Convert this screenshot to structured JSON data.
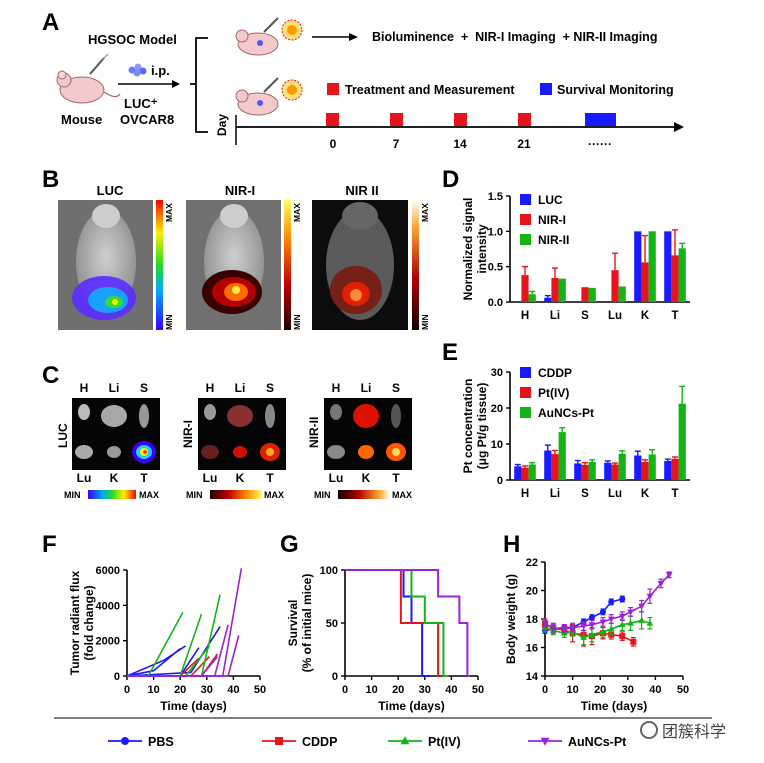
{
  "panel_letters": [
    "A",
    "B",
    "C",
    "D",
    "E",
    "F",
    "G",
    "H"
  ],
  "schematic": {
    "model_title": "HGSOC Model",
    "mouse_label": "Mouse",
    "ip_label": "i.p.",
    "cell_line": [
      "LUC⁺",
      "OVCAR8"
    ],
    "imaging_label": "Bioluminence  +  NIR-I Imaging  + NIR-II Imaging",
    "legend_treatment": "Treatment and Measurement",
    "legend_survival": "Survival Monitoring",
    "timeline_axis": "Day",
    "timeline_ticks": [
      "0",
      "7",
      "14",
      "21",
      "······"
    ],
    "colors": {
      "treatment": "#e8141c",
      "survival": "#1a1aff"
    }
  },
  "imaging_b": {
    "titles": [
      "LUC",
      "NIR-I",
      "NIR II"
    ],
    "scale_max": "MAX",
    "scale_min": "MIN"
  },
  "imaging_c": {
    "row_labels": [
      "LUC",
      "NIR-I",
      "NIR-II"
    ],
    "organs_top": [
      "H",
      "Li",
      "S"
    ],
    "organs_bottom": [
      "Lu",
      "K",
      "T"
    ],
    "scale_min": "MIN",
    "scale_max": "MAX"
  },
  "chart_data": [
    {
      "panel": "D",
      "type": "bar",
      "ylabel": "Normalized signal intensity",
      "ylim": [
        0,
        1.5
      ],
      "yticks": [
        "0.0",
        "0.5",
        "1.0",
        "1.5"
      ],
      "categories": [
        "H",
        "Li",
        "S",
        "Lu",
        "K",
        "T"
      ],
      "legend": "top-left",
      "series": [
        {
          "name": "LUC",
          "color": "#1a1aff",
          "values": [
            0.0,
            0.06,
            0.0,
            0.0,
            1.0,
            1.0
          ],
          "err": [
            0,
            0.03,
            0,
            0,
            0,
            0
          ]
        },
        {
          "name": "NIR-I",
          "color": "#e8141c",
          "values": [
            0.38,
            0.34,
            0.21,
            0.45,
            0.56,
            0.66
          ],
          "err": [
            0.12,
            0.14,
            0,
            0.24,
            0.38,
            0.36
          ]
        },
        {
          "name": "NIR-II",
          "color": "#14b414",
          "values": [
            0.11,
            0.33,
            0.2,
            0.22,
            1.0,
            0.76
          ],
          "err": [
            0.04,
            0,
            0,
            0,
            0,
            0.07
          ]
        }
      ]
    },
    {
      "panel": "E",
      "type": "bar",
      "ylabel": "Pt concentration (μg Pt/g tissue)",
      "ylim": [
        0,
        30
      ],
      "yticks": [
        "0",
        "10",
        "20",
        "30"
      ],
      "categories": [
        "H",
        "Li",
        "S",
        "Lu",
        "K",
        "T"
      ],
      "legend": "top-left",
      "series": [
        {
          "name": "CDDP",
          "color": "#1a1aff",
          "values": [
            3.8,
            8.2,
            4.6,
            4.8,
            6.8,
            5.3
          ],
          "err": [
            0.5,
            1.5,
            0.8,
            0.5,
            1.2,
            0.5
          ]
        },
        {
          "name": "Pt(IV)",
          "color": "#e8141c",
          "values": [
            3.4,
            7.2,
            4.2,
            4.3,
            5.0,
            5.9
          ],
          "err": [
            0.5,
            1.0,
            0.6,
            0.4,
            0.6,
            0.5
          ]
        },
        {
          "name": "AuNCs-Pt",
          "color": "#14b414",
          "values": [
            4.3,
            13.3,
            5.0,
            7.3,
            7.1,
            21.2
          ],
          "err": [
            0.5,
            1.2,
            0.6,
            0.8,
            1.3,
            4.8
          ]
        }
      ]
    },
    {
      "panel": "F",
      "type": "line",
      "xlabel": "Time (days)",
      "ylabel": "Tumor radiant flux (fold change)",
      "xlim": [
        0,
        50
      ],
      "ylim": [
        0,
        6000
      ],
      "xticks": [
        "0",
        "10",
        "20",
        "30",
        "40",
        "50"
      ],
      "yticks": [
        "0",
        "2000",
        "4000",
        "6000"
      ],
      "series": [
        {
          "group": "PBS",
          "color": "#1a1aff",
          "x": [
            0,
            10,
            20
          ],
          "y": [
            0,
            300,
            1550
          ]
        },
        {
          "group": "PBS",
          "color": "#1a1aff",
          "x": [
            0,
            14,
            22
          ],
          "y": [
            0,
            900,
            1700
          ]
        },
        {
          "group": "PBS",
          "color": "#1a1aff",
          "x": [
            0,
            20,
            27
          ],
          "y": [
            0,
            0,
            1600
          ]
        },
        {
          "group": "PBS",
          "color": "#1a1aff",
          "x": [
            0,
            24,
            35
          ],
          "y": [
            0,
            200,
            2800
          ]
        },
        {
          "group": "CDDP",
          "color": "#e8141c",
          "x": [
            0,
            20,
            27
          ],
          "y": [
            0,
            0,
            1000
          ]
        },
        {
          "group": "CDDP",
          "color": "#e8141c",
          "x": [
            0,
            24,
            31
          ],
          "y": [
            0,
            0,
            1100
          ]
        },
        {
          "group": "CDDP",
          "color": "#e8141c",
          "x": [
            0,
            28,
            34
          ],
          "y": [
            0,
            0,
            1250
          ]
        },
        {
          "group": "Pt(IV)",
          "color": "#14b414",
          "x": [
            0,
            8,
            21
          ],
          "y": [
            0,
            0,
            3600
          ]
        },
        {
          "group": "Pt(IV)",
          "color": "#14b414",
          "x": [
            0,
            20,
            28
          ],
          "y": [
            0,
            0,
            3500
          ]
        },
        {
          "group": "Pt(IV)",
          "color": "#14b414",
          "x": [
            0,
            28,
            35
          ],
          "y": [
            0,
            0,
            4600
          ]
        },
        {
          "group": "Pt(IV)",
          "color": "#14b414",
          "x": [
            0,
            22,
            31
          ],
          "y": [
            0,
            0,
            1700
          ]
        },
        {
          "group": "AuNCs-Pt",
          "color": "#9b22d6",
          "x": [
            0,
            28,
            34
          ],
          "y": [
            0,
            0,
            1100
          ]
        },
        {
          "group": "AuNCs-Pt",
          "color": "#9b22d6",
          "x": [
            0,
            33,
            38
          ],
          "y": [
            0,
            0,
            2900
          ]
        },
        {
          "group": "AuNCs-Pt",
          "color": "#9b22d6",
          "x": [
            0,
            36,
            43
          ],
          "y": [
            0,
            0,
            6100
          ]
        },
        {
          "group": "AuNCs-Pt",
          "color": "#9b22d6",
          "x": [
            0,
            38,
            42
          ],
          "y": [
            0,
            0,
            2300
          ]
        }
      ]
    },
    {
      "panel": "G",
      "type": "line",
      "xlabel": "Time (days)",
      "ylabel": "Survival (% of initial mice)",
      "xlim": [
        0,
        50
      ],
      "ylim": [
        0,
        100
      ],
      "xticks": [
        "0",
        "10",
        "20",
        "30",
        "40",
        "50"
      ],
      "yticks": [
        "0",
        "50",
        "100"
      ],
      "series": [
        {
          "name": "PBS",
          "color": "#1a1aff",
          "x": [
            0,
            22,
            22,
            25,
            25,
            29,
            29,
            32
          ],
          "y": [
            100,
            100,
            75,
            75,
            50,
            50,
            0,
            0
          ]
        },
        {
          "name": "CDDP",
          "color": "#e8141c",
          "x": [
            0,
            21,
            21,
            28,
            28,
            35,
            35,
            36
          ],
          "y": [
            100,
            100,
            50,
            50,
            50,
            50,
            0,
            0
          ]
        },
        {
          "name": "Pt(IV)",
          "color": "#14b414",
          "x": [
            0,
            25,
            25,
            30,
            30,
            37,
            37,
            39
          ],
          "y": [
            100,
            100,
            75,
            75,
            50,
            50,
            0,
            0
          ]
        },
        {
          "name": "AuNCs-Pt",
          "color": "#9b22d6",
          "x": [
            0,
            35,
            35,
            43,
            43,
            46,
            46,
            47
          ],
          "y": [
            100,
            100,
            75,
            75,
            50,
            50,
            0,
            0
          ]
        }
      ]
    },
    {
      "panel": "H",
      "type": "line",
      "xlabel": "Time (days)",
      "ylabel": "Body weight (g)",
      "xlim": [
        0,
        50
      ],
      "ylim": [
        14,
        22
      ],
      "xticks": [
        "0",
        "10",
        "20",
        "30",
        "40",
        "50"
      ],
      "yticks": [
        "14",
        "16",
        "18",
        "20",
        "22"
      ],
      "series": [
        {
          "name": "PBS",
          "color": "#1a1aff",
          "marker": "circle",
          "x": [
            0,
            3,
            7,
            10,
            14,
            17,
            21,
            24,
            28
          ],
          "y": [
            17.2,
            17.3,
            17.4,
            17.4,
            17.8,
            18.1,
            18.5,
            19.2,
            19.4
          ],
          "err": [
            0.2,
            0.2,
            0.2,
            0.2,
            0.2,
            0.2,
            0.2,
            0.2,
            0.2
          ]
        },
        {
          "name": "CDDP",
          "color": "#e8141c",
          "marker": "square",
          "x": [
            0,
            3,
            7,
            10,
            14,
            17,
            21,
            24,
            28,
            32
          ],
          "y": [
            17.6,
            17.4,
            17.2,
            17.0,
            16.9,
            16.8,
            17.0,
            16.9,
            16.8,
            16.4
          ],
          "err": [
            0.3,
            0.3,
            0.3,
            0.6,
            0.8,
            0.6,
            0.4,
            0.3,
            0.3,
            0.3
          ]
        },
        {
          "name": "Pt(IV)",
          "color": "#14b414",
          "marker": "triangle",
          "x": [
            0,
            3,
            7,
            10,
            14,
            17,
            21,
            24,
            28,
            31,
            35,
            38
          ],
          "y": [
            17.4,
            17.2,
            17.0,
            17.1,
            16.7,
            16.9,
            17.1,
            17.3,
            17.6,
            17.7,
            17.9,
            17.7
          ],
          "err": [
            0.3,
            0.3,
            0.3,
            0.3,
            0.5,
            0.5,
            0.4,
            0.4,
            0.4,
            0.5,
            0.6,
            0.4
          ]
        },
        {
          "name": "AuNCs-Pt",
          "color": "#9b22d6",
          "marker": "triangle-down",
          "x": [
            0,
            3,
            7,
            10,
            14,
            17,
            21,
            24,
            28,
            31,
            35,
            38,
            42,
            45
          ],
          "y": [
            17.7,
            17.3,
            17.3,
            17.4,
            17.5,
            17.6,
            17.8,
            18.0,
            18.2,
            18.5,
            18.9,
            19.6,
            20.5,
            21.1
          ],
          "err": [
            0.3,
            0.3,
            0.3,
            0.3,
            0.3,
            0.3,
            0.3,
            0.3,
            0.3,
            0.3,
            0.4,
            0.5,
            0.3,
            0.2
          ]
        }
      ]
    }
  ],
  "bottom_legend": [
    {
      "name": "PBS",
      "color": "#1a1aff",
      "marker": "circle"
    },
    {
      "name": "CDDP",
      "color": "#e8141c",
      "marker": "square"
    },
    {
      "name": "Pt(IV)",
      "color": "#14b414",
      "marker": "triangle"
    },
    {
      "name": "AuNCs-Pt",
      "color": "#9b22d6",
      "marker": "triangle-down"
    }
  ],
  "watermark": "团簇科学"
}
